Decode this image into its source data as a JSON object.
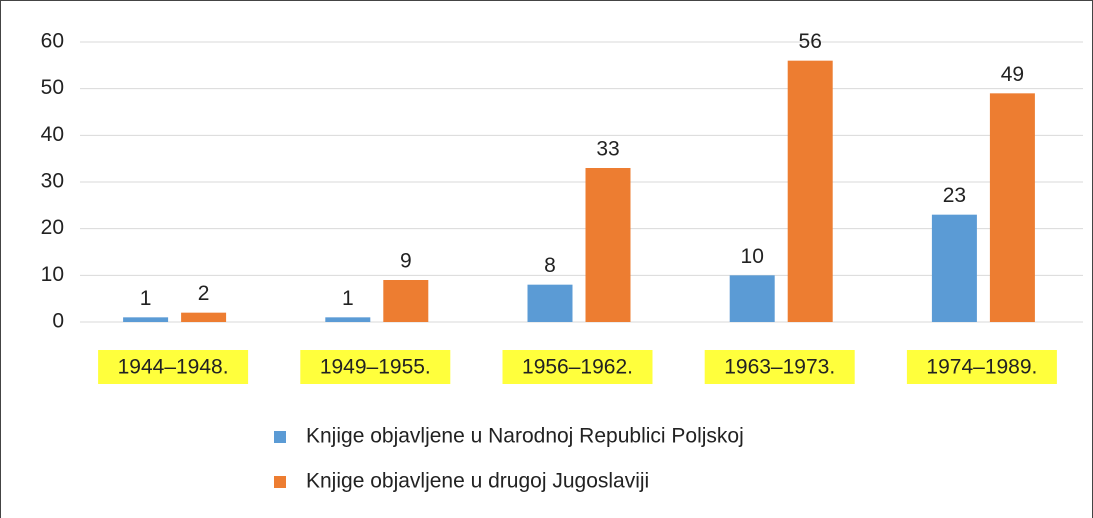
{
  "chart_data": {
    "type": "bar",
    "categories": [
      "1944–1948.",
      "1949–1955.",
      "1956–1962.",
      "1963–1973.",
      "1974–1989."
    ],
    "series": [
      {
        "name": "Knjige objavljene u Narodnoj Republici Poljskoj",
        "color": "#5b9bd5",
        "values": [
          1,
          1,
          8,
          10,
          23
        ]
      },
      {
        "name": "Knjige objavljene u drugoj Jugoslaviji",
        "color": "#ed7d31",
        "values": [
          2,
          9,
          33,
          56,
          49
        ]
      }
    ],
    "ylim": [
      0,
      60
    ],
    "yticks": [
      0,
      10,
      20,
      30,
      40,
      50,
      60
    ],
    "grid": true,
    "legend": "bottom"
  }
}
